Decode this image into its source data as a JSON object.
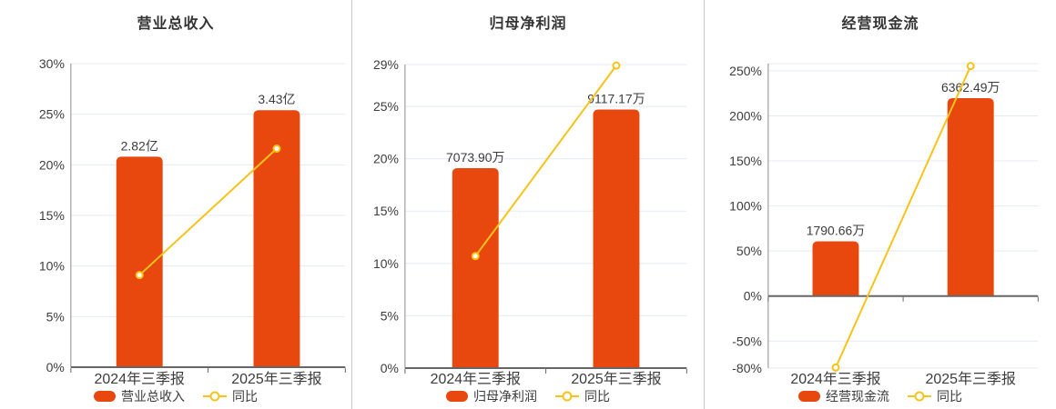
{
  "colors": {
    "bar": "#E8470E",
    "line": "#F5C31A",
    "marker_fill": "#FFFFFF",
    "grid": "#E4E9F2",
    "y_axis_line": "#8C8C8C",
    "x_axis_line": "#666666",
    "divider": "#CCCCCC",
    "text": "#3C3C3C"
  },
  "chart_data": [
    {
      "type": "bar+line",
      "title": "营业总收入",
      "categories": [
        "2024年三季报",
        "2025年三季报"
      ],
      "bar_series": {
        "name": "营业总收入",
        "values": [
          2.82,
          3.43
        ],
        "unit": "亿",
        "labels": [
          "2.82亿",
          "3.43亿"
        ]
      },
      "line_series": {
        "name": "同比",
        "values_pct": [
          9.1,
          21.6
        ]
      },
      "y_axis": {
        "min": 0,
        "max": 30,
        "unit": "%",
        "tick_values": [
          0,
          5,
          10,
          15,
          20,
          25,
          30
        ],
        "tick_labels": [
          "0%",
          "5%",
          "10%",
          "15%",
          "20%",
          "25%",
          "30%"
        ]
      },
      "bar_tops_on_pct_axis": [
        20.8,
        25.4
      ],
      "legend": [
        "营业总收入",
        "同比"
      ],
      "grid_on": true,
      "legend_position": "bottom"
    },
    {
      "type": "bar+line",
      "title": "归母净利润",
      "categories": [
        "2024年三季报",
        "2025年三季报"
      ],
      "bar_series": {
        "name": "归母净利润",
        "values": [
          7073.9,
          9117.17
        ],
        "unit": "万",
        "labels": [
          "7073.90万",
          "9117.17万"
        ]
      },
      "line_series": {
        "name": "同比",
        "values_pct": [
          10.7,
          28.9
        ]
      },
      "y_axis": {
        "min": 0,
        "max": 29,
        "unit": "%",
        "tick_values": [
          0,
          5,
          10,
          15,
          20,
          25,
          29
        ],
        "tick_labels": [
          "0%",
          "5%",
          "10%",
          "15%",
          "20%",
          "25%",
          "29%"
        ]
      },
      "bar_tops_on_pct_axis": [
        19.1,
        24.7
      ],
      "legend": [
        "归母净利润",
        "同比"
      ],
      "grid_on": true,
      "legend_position": "bottom"
    },
    {
      "type": "bar+line",
      "title": "经营现金流",
      "categories": [
        "2024年三季报",
        "2025年三季报"
      ],
      "bar_series": {
        "name": "经营现金流",
        "values": [
          1790.66,
          6362.49
        ],
        "unit": "万",
        "labels": [
          "1790.66万",
          "6362.49万"
        ]
      },
      "line_series": {
        "name": "同比",
        "values_pct": [
          -79.4,
          255.3
        ]
      },
      "y_axis": {
        "min": -80,
        "max": 258,
        "unit": "%",
        "tick_values": [
          -80,
          -50,
          0,
          50,
          100,
          150,
          200,
          250
        ],
        "tick_labels": [
          "-80%",
          "-50%",
          "0%",
          "50%",
          "100%",
          "150%",
          "200%",
          "250%"
        ]
      },
      "bar_tops_on_pct_axis": [
        60.7,
        219.6
      ],
      "legend": [
        "经营现金流",
        "同比"
      ],
      "grid_on": true,
      "legend_position": "bottom"
    }
  ]
}
